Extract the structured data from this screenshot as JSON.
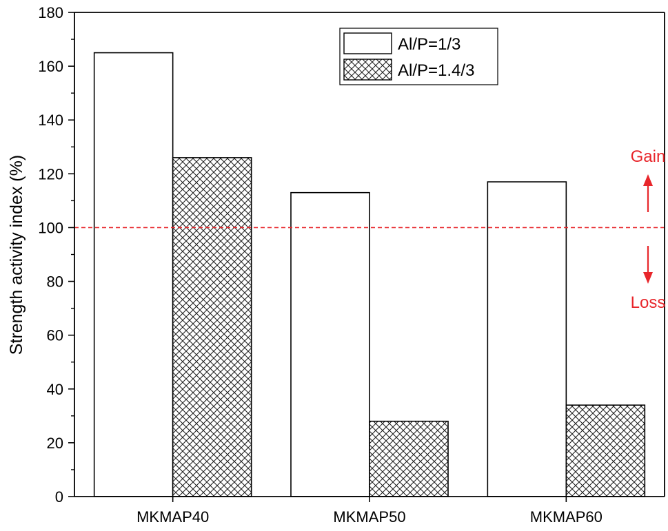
{
  "chart_data": {
    "type": "bar",
    "categories": [
      "MKMAP40",
      "MKMAP50",
      "MKMAP60"
    ],
    "series": [
      {
        "name": "Al/P=1/3",
        "values": [
          165,
          113,
          117
        ],
        "fill": "plain"
      },
      {
        "name": "Al/P=1.4/3",
        "values": [
          126,
          28,
          34
        ],
        "fill": "crosshatch"
      }
    ],
    "ylabel": "Strength activity index (%)",
    "xlabel": "",
    "ylim": [
      0,
      180
    ],
    "yticks": [
      0,
      20,
      40,
      60,
      80,
      100,
      120,
      140,
      160,
      180
    ],
    "grid": false,
    "legend": "top-center",
    "reference_line": {
      "y": 100,
      "style": "dashed",
      "color": "#e8262b"
    },
    "annotations": [
      {
        "text": "Gain",
        "direction": "up",
        "color": "#e8262b"
      },
      {
        "text": "Loss",
        "direction": "down",
        "color": "#e8262b"
      }
    ]
  }
}
